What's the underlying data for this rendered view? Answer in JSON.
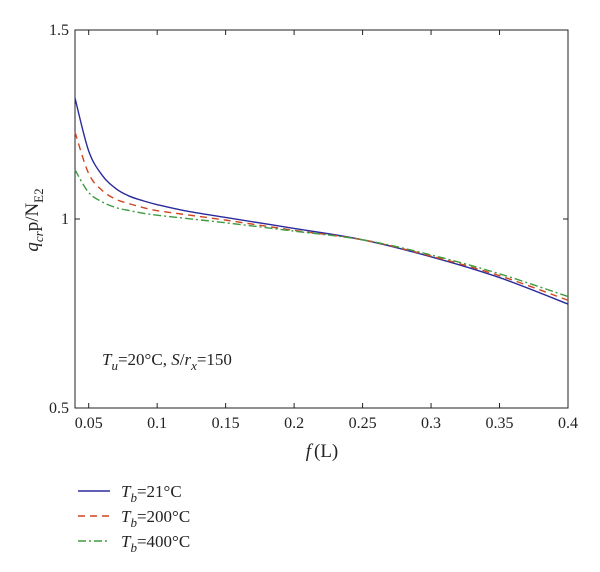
{
  "chart_data": {
    "type": "line",
    "xlabel": {
      "main": "f",
      "rest": "(L)"
    },
    "ylabel": {
      "q": "q",
      "q_sub": "cr",
      "mid": "p/N",
      "n_sub": "E2"
    },
    "xlim": [
      0.04,
      0.4
    ],
    "ylim": [
      0.5,
      1.5
    ],
    "xticks": [
      0.05,
      0.1,
      0.15,
      0.2,
      0.25,
      0.3,
      0.35,
      0.4
    ],
    "xtick_labels": [
      "0.05",
      "0.1",
      "0.15",
      "0.2",
      "0.25",
      "0.3",
      "0.35",
      "0.4"
    ],
    "yticks": [
      0.5,
      1.0,
      1.5
    ],
    "ytick_labels": [
      "0.5",
      "1",
      "1.5"
    ],
    "grid": false,
    "legend_position": "below-left",
    "annotation": {
      "t": "T",
      "t_sub": "u",
      "mid": "=20°C, ",
      "s": "S",
      "slash": "/",
      "r": "r",
      "r_sub": "x",
      "end": "=150"
    },
    "series": [
      {
        "name": {
          "t": "T",
          "sub": "b",
          "rest": "=21°C"
        },
        "color": "#2b2b9c",
        "dash": "solid",
        "x": [
          0.04,
          0.05,
          0.06,
          0.07,
          0.08,
          0.09,
          0.1,
          0.12,
          0.15,
          0.2,
          0.25,
          0.3,
          0.35,
          0.4
        ],
        "y": [
          1.32,
          1.18,
          1.115,
          1.08,
          1.06,
          1.048,
          1.038,
          1.022,
          1.004,
          0.975,
          0.945,
          0.9,
          0.845,
          0.775
        ]
      },
      {
        "name": {
          "t": "T",
          "sub": "b",
          "rest": "=200°C"
        },
        "color": "#d2451e",
        "dash": "7,5",
        "x": [
          0.04,
          0.05,
          0.06,
          0.07,
          0.08,
          0.09,
          0.1,
          0.12,
          0.15,
          0.2,
          0.25,
          0.3,
          0.35,
          0.4
        ],
        "y": [
          1.23,
          1.12,
          1.075,
          1.052,
          1.04,
          1.03,
          1.022,
          1.012,
          0.997,
          0.97,
          0.945,
          0.902,
          0.85,
          0.785
        ]
      },
      {
        "name": {
          "t": "T",
          "sub": "b",
          "rest": "=400°C"
        },
        "color": "#3f9a3f",
        "dash": "8,3,2,3",
        "x": [
          0.04,
          0.05,
          0.06,
          0.07,
          0.08,
          0.09,
          0.1,
          0.12,
          0.15,
          0.2,
          0.25,
          0.3,
          0.35,
          0.4
        ],
        "y": [
          1.13,
          1.07,
          1.045,
          1.03,
          1.022,
          1.015,
          1.01,
          1.002,
          0.99,
          0.968,
          0.945,
          0.905,
          0.855,
          0.795
        ]
      }
    ]
  }
}
